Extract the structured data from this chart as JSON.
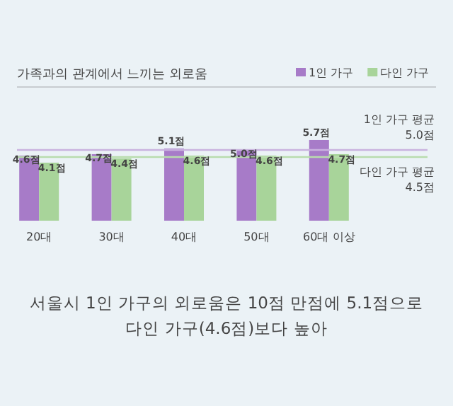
{
  "chart_data": {
    "type": "bar",
    "title": "가족과의 관계에서 느끼는 외로움",
    "categories": [
      "20대",
      "30대",
      "40대",
      "50대",
      "60대 이상"
    ],
    "series": [
      {
        "name": "1인 가구",
        "color": "#a77bc8",
        "values": [
          4.6,
          4.7,
          5.1,
          5.0,
          5.7
        ],
        "value_labels": [
          "4.6점",
          "4.7점",
          "5.1점",
          "5.0점",
          "5.7점"
        ]
      },
      {
        "name": "다인 가구",
        "color": "#a8d49a",
        "values": [
          4.1,
          4.4,
          4.6,
          4.6,
          4.7
        ],
        "value_labels": [
          "4.1점",
          "4.4점",
          "4.6점",
          "4.6점",
          "4.7점"
        ]
      }
    ],
    "legend": "top right",
    "ref_lines": [
      {
        "axis": "y",
        "value": 5.0,
        "label": "1인 가구 평균 5.0점",
        "color": "#c9b3df"
      },
      {
        "axis": "y",
        "value": 4.5,
        "label": "다인 가구 평균 4.5점",
        "color": "#b9dcae"
      }
    ],
    "annotations": [
      "서울시 1인 가구의 외로움은 10점 만점에 5.1점으로 다인 가구(4.6점)보다 높아"
    ]
  }
}
